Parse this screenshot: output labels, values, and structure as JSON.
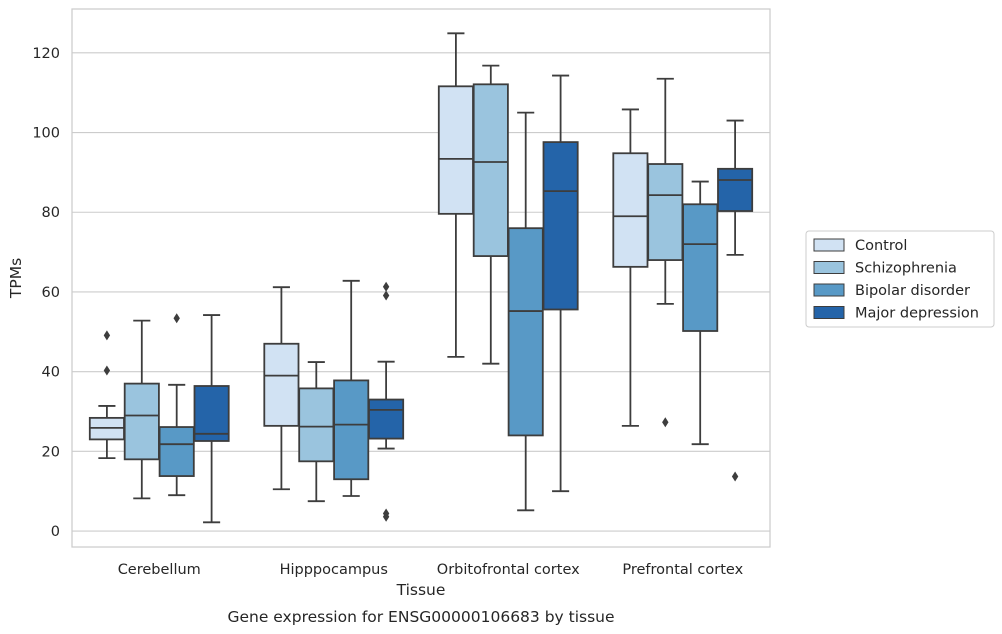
{
  "chart_data": {
    "type": "boxplot",
    "title": "",
    "caption": "Gene expression for ENSG00000106683 by tissue",
    "xlabel": "Tissue",
    "ylabel": "TPMs",
    "ylim": [
      -4,
      131
    ],
    "yticks": [
      0,
      20,
      40,
      60,
      80,
      100,
      120
    ],
    "grid": true,
    "legend_position": "right",
    "categories": [
      "Cerebellum",
      "Hipppocampus",
      "Orbitofrontal cortex",
      "Prefrontal cortex"
    ],
    "series": [
      {
        "name": "Control",
        "color": "#d1e2f3",
        "boxes": [
          {
            "whisker_low": 18.3,
            "q1": 23.0,
            "median": 25.9,
            "q3": 28.4,
            "whisker_high": 31.4,
            "outliers": [
              40.3,
              49.1
            ]
          },
          {
            "whisker_low": 10.5,
            "q1": 26.4,
            "median": 39.0,
            "q3": 47.0,
            "whisker_high": 61.2,
            "outliers": []
          },
          {
            "whisker_low": 43.7,
            "q1": 79.6,
            "median": 93.4,
            "q3": 111.6,
            "whisker_high": 124.9,
            "outliers": []
          },
          {
            "whisker_low": 26.4,
            "q1": 66.3,
            "median": 79.0,
            "q3": 94.8,
            "whisker_high": 105.8,
            "outliers": []
          }
        ]
      },
      {
        "name": "Schizophrenia",
        "color": "#9ac4de",
        "boxes": [
          {
            "whisker_low": 8.2,
            "q1": 18.0,
            "median": 29.0,
            "q3": 37.0,
            "whisker_high": 52.8,
            "outliers": []
          },
          {
            "whisker_low": 7.5,
            "q1": 17.5,
            "median": 26.2,
            "q3": 35.8,
            "whisker_high": 42.4,
            "outliers": []
          },
          {
            "whisker_low": 42.0,
            "q1": 69.0,
            "median": 92.6,
            "q3": 112.1,
            "whisker_high": 116.8,
            "outliers": []
          },
          {
            "whisker_low": 57.0,
            "q1": 68.0,
            "median": 84.3,
            "q3": 92.1,
            "whisker_high": 113.5,
            "outliers": [
              27.3
            ]
          }
        ]
      },
      {
        "name": "Bipolar disorder",
        "color": "#5899c6",
        "boxes": [
          {
            "whisker_low": 9.0,
            "q1": 13.8,
            "median": 21.8,
            "q3": 26.1,
            "whisker_high": 36.7,
            "outliers": [
              53.4
            ]
          },
          {
            "whisker_low": 8.8,
            "q1": 13.0,
            "median": 26.7,
            "q3": 37.8,
            "whisker_high": 62.8,
            "outliers": []
          },
          {
            "whisker_low": 5.2,
            "q1": 24.0,
            "median": 55.2,
            "q3": 76.0,
            "whisker_high": 105.0,
            "outliers": []
          },
          {
            "whisker_low": 21.8,
            "q1": 50.2,
            "median": 72.0,
            "q3": 82.0,
            "whisker_high": 87.7,
            "outliers": []
          }
        ]
      },
      {
        "name": "Major depression",
        "color": "#2464a9",
        "boxes": [
          {
            "whisker_low": 2.2,
            "q1": 22.6,
            "median": 24.4,
            "q3": 36.4,
            "whisker_high": 54.2,
            "outliers": []
          },
          {
            "whisker_low": 20.7,
            "q1": 23.2,
            "median": 30.4,
            "q3": 33.0,
            "whisker_high": 42.5,
            "outliers": [
              61.3,
              59.1,
              4.4,
              3.6
            ]
          },
          {
            "whisker_low": 10.0,
            "q1": 55.6,
            "median": 85.3,
            "q3": 97.6,
            "whisker_high": 114.3,
            "outliers": []
          },
          {
            "whisker_low": 69.3,
            "q1": 80.3,
            "median": 88.1,
            "q3": 90.9,
            "whisker_high": 103.0,
            "outliers": [
              13.7
            ]
          }
        ]
      }
    ]
  }
}
